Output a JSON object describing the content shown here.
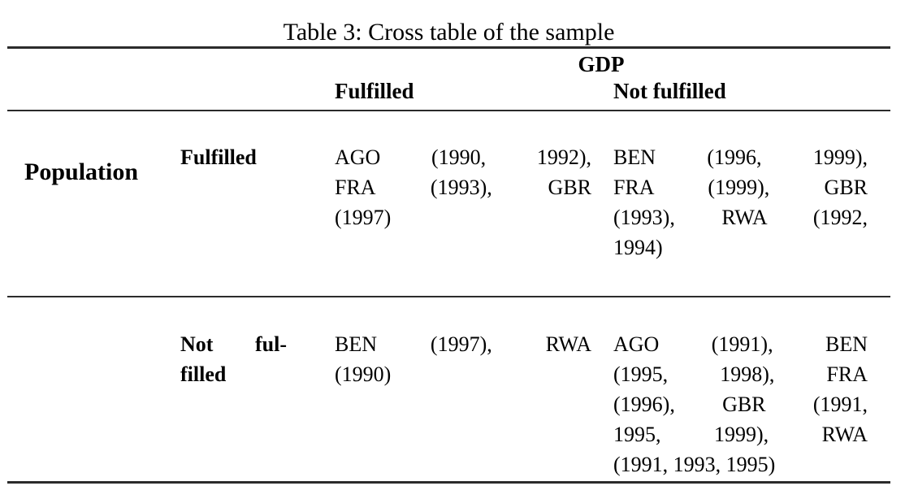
{
  "table": {
    "caption": "Table 3: Cross table of the sample",
    "col_group_header": "GDP",
    "row_group_header": "Population",
    "col_headers": [
      "Fulfilled",
      "Not fulfilled"
    ],
    "rows": [
      {
        "label_lines": [
          "Fulfilled"
        ],
        "cells": [
          {
            "lines": [
              "AGO (1990, 1992),",
              "FRA (1993), GBR",
              "(1997)"
            ]
          },
          {
            "lines": [
              "BEN (1996, 1999),",
              "FRA (1999), GBR",
              "(1993), RWA (1992,",
              "1994)"
            ]
          }
        ]
      },
      {
        "label_lines": [
          "Not ful-",
          "filled"
        ],
        "cells": [
          {
            "lines": [
              "BEN (1997), RWA",
              "(1990)"
            ]
          },
          {
            "lines": [
              "AGO (1991), BEN",
              "(1995, 1998), FRA",
              "(1996), GBR (1991,",
              "1995, 1999), RWA",
              "(1991, 1993, 1995)"
            ]
          }
        ]
      }
    ]
  }
}
